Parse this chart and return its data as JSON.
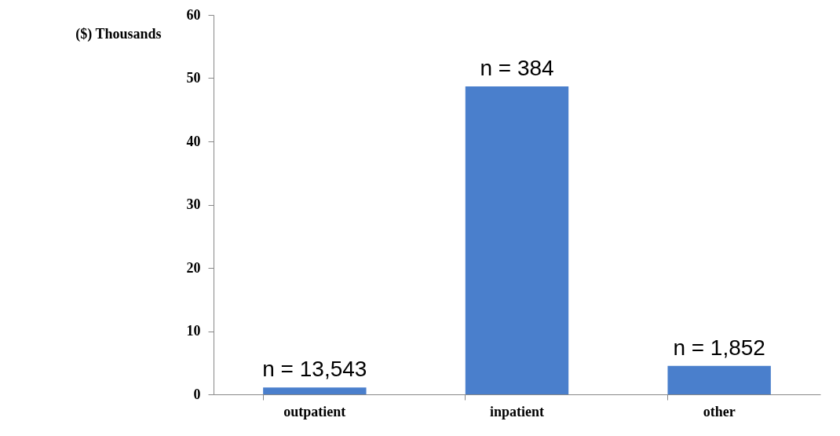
{
  "chart_data": {
    "type": "bar",
    "ylabel": "($) Thousands",
    "categories": [
      "outpatient",
      "inpatient",
      "other"
    ],
    "series": [
      {
        "color": "#4a7fcc",
        "values": [
          1.1,
          48.7,
          4.5
        ]
      }
    ],
    "ylim": [
      0,
      60
    ],
    "yticks": [
      0,
      10,
      20,
      30,
      40,
      50,
      60
    ],
    "grid": false,
    "annotations": [
      {
        "text": "n = 13,543",
        "x": "outpatient",
        "y": 1.1
      },
      {
        "text": "n = 384",
        "x": "inpatient",
        "y": 48.7
      },
      {
        "text": "n = 1,852",
        "x": "other",
        "y": 4.5
      }
    ]
  }
}
